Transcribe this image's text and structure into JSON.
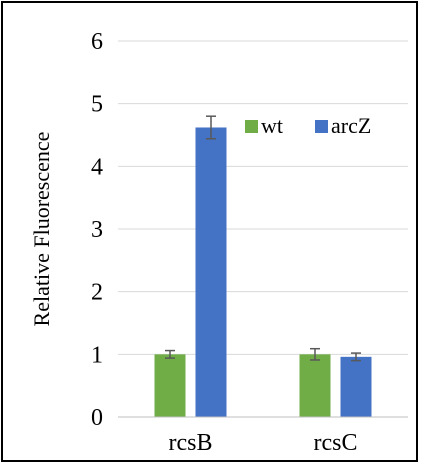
{
  "chart_data": {
    "type": "bar",
    "title": "",
    "xlabel": "",
    "ylabel": "Relative Fluorescence",
    "categories": [
      "rcsB",
      "rcsC"
    ],
    "ylim": [
      0,
      6
    ],
    "yticks": [
      "0",
      "1",
      "2",
      "3",
      "4",
      "5",
      "6"
    ],
    "grid": "horizontal",
    "legend_position": "upper-right",
    "series": [
      {
        "name": "wt",
        "color": "#70ad47",
        "values": [
          1.0,
          1.0
        ],
        "errors": [
          0.06,
          0.09
        ]
      },
      {
        "name": "arcZ",
        "color": "#4472c4",
        "values": [
          4.62,
          0.96
        ],
        "errors": [
          0.18,
          0.06
        ]
      }
    ]
  }
}
